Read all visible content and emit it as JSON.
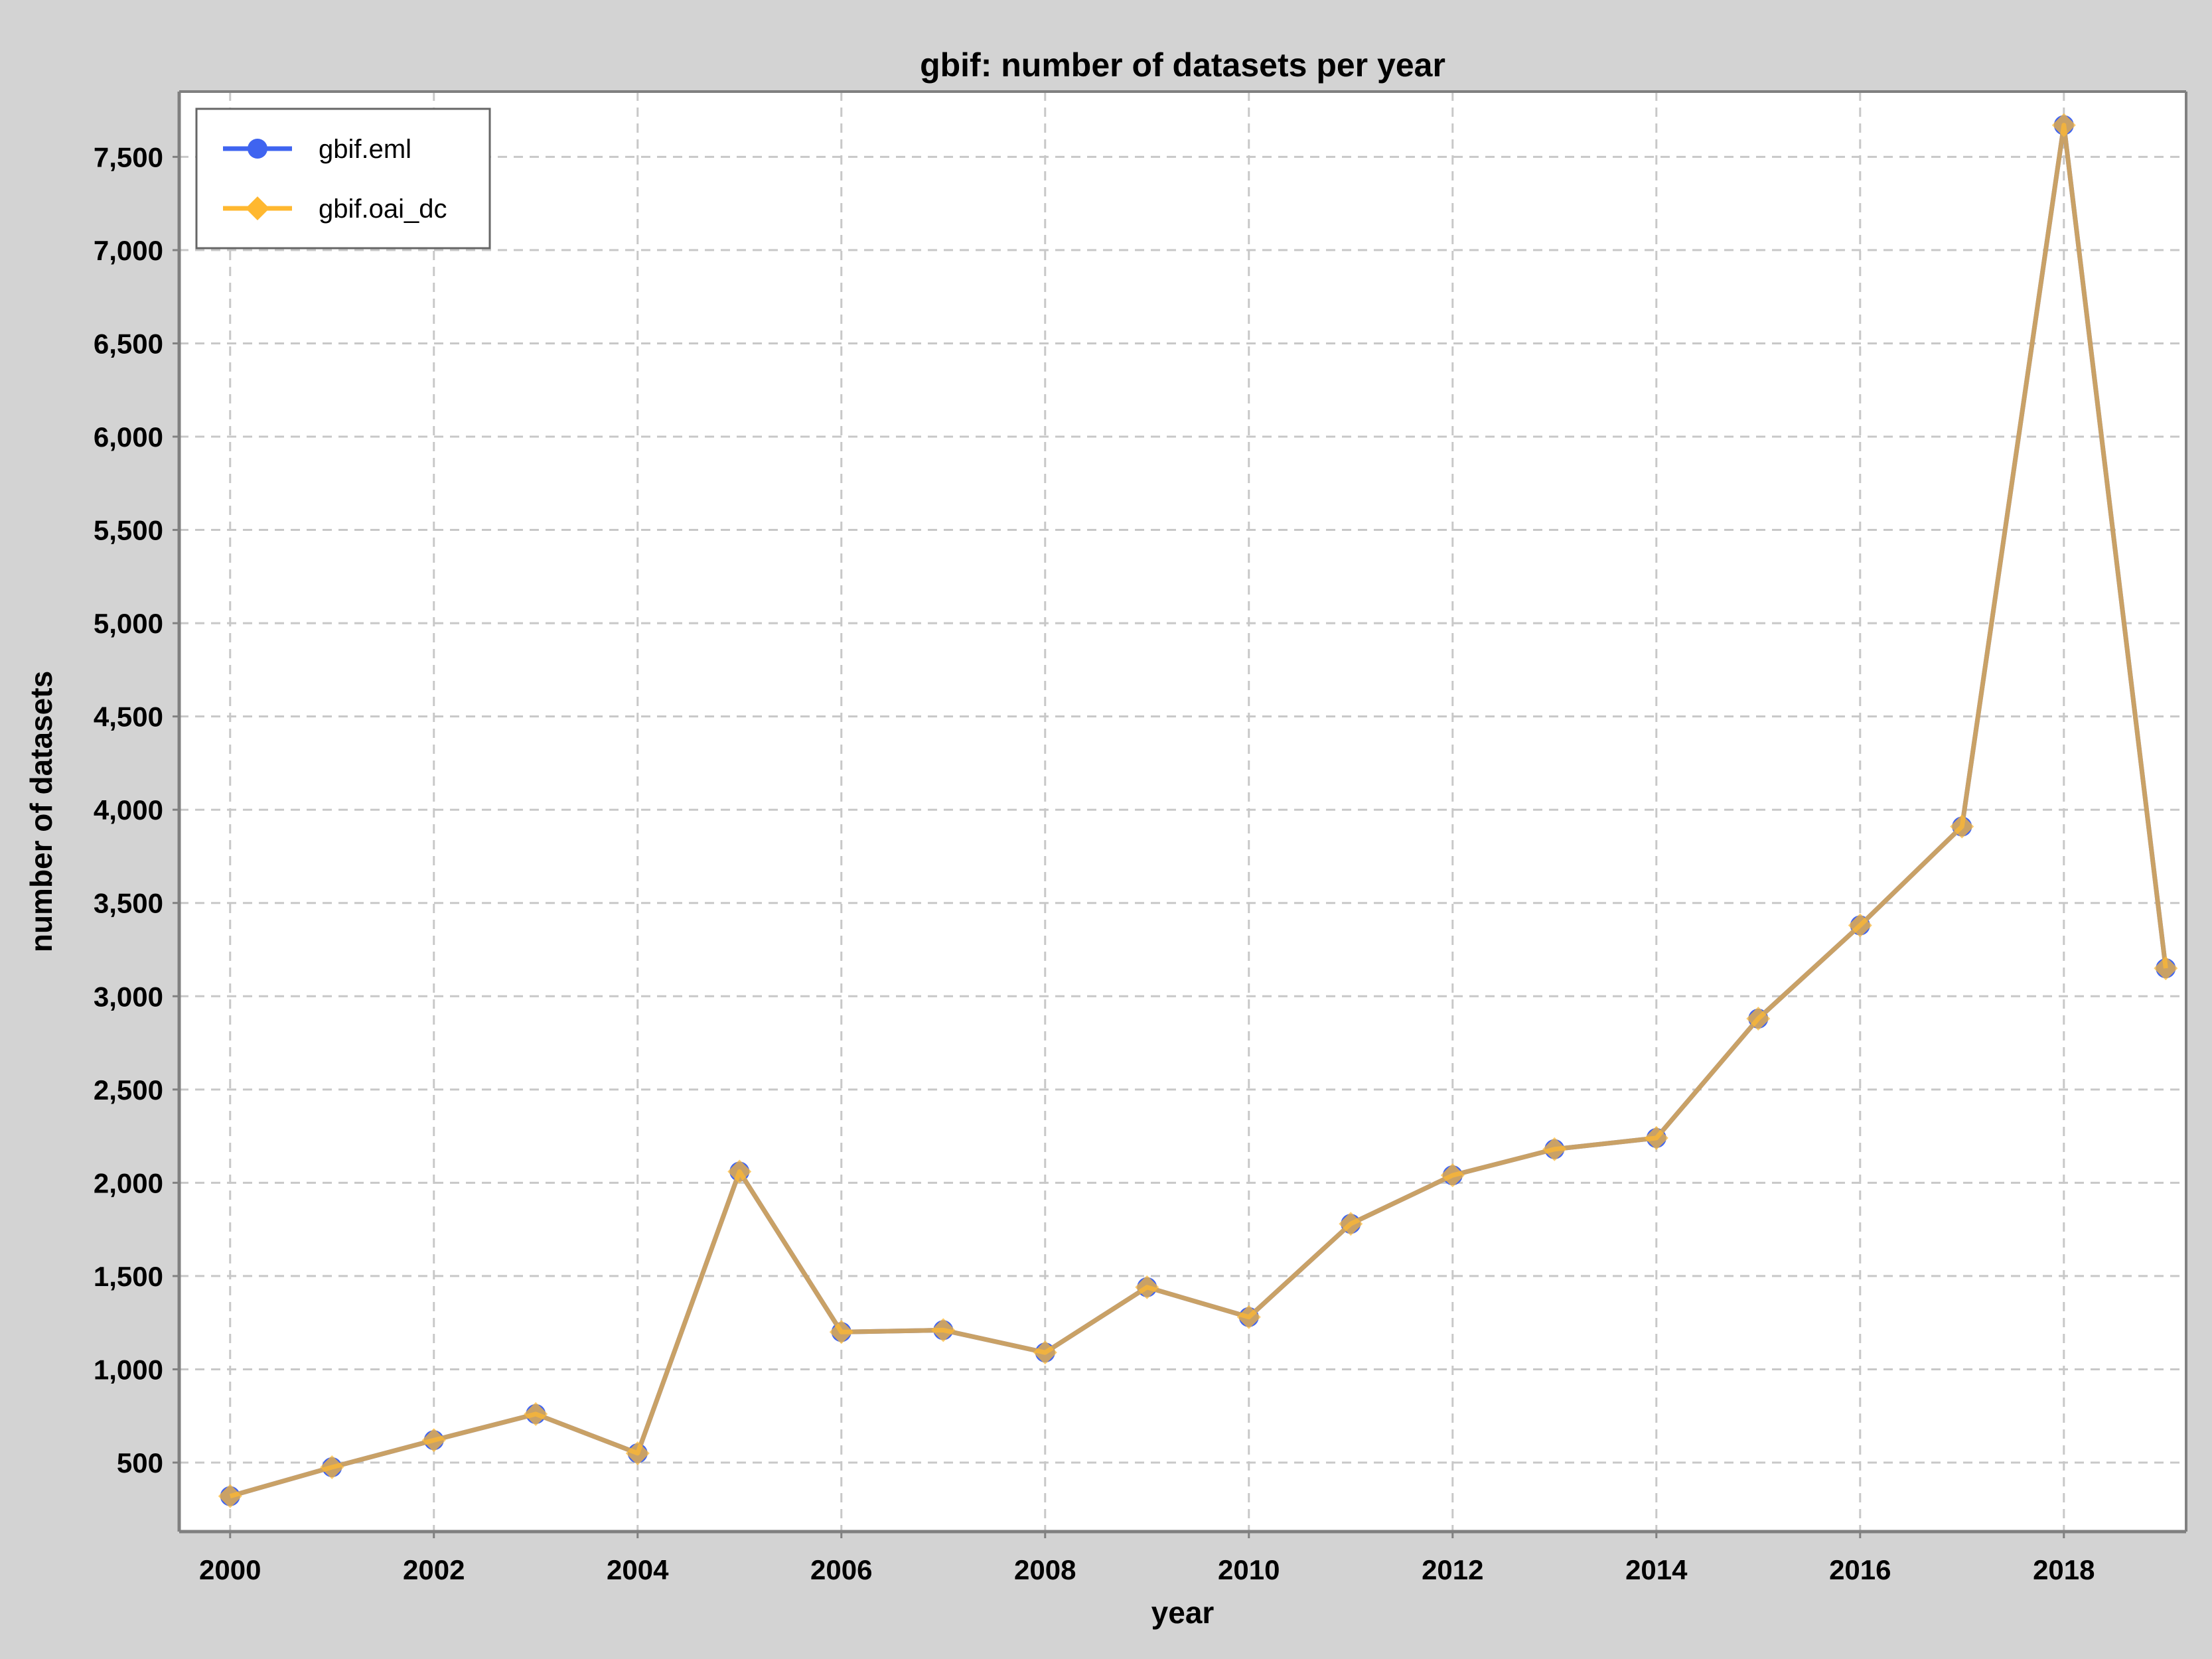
{
  "chart_data": {
    "type": "line",
    "title": "gbif: number of datasets per year",
    "xlabel": "year",
    "ylabel": "number of datasets",
    "x": [
      2000,
      2001,
      2002,
      2003,
      2004,
      2005,
      2006,
      2007,
      2008,
      2009,
      2010,
      2011,
      2012,
      2013,
      2014,
      2015,
      2016,
      2017,
      2018,
      2019
    ],
    "xlim": [
      1999.5,
      2019.2
    ],
    "ylim": [
      130,
      7850
    ],
    "xticks": [
      2000,
      2002,
      2004,
      2006,
      2008,
      2010,
      2012,
      2014,
      2016,
      2018
    ],
    "yticks": [
      500,
      1000,
      1500,
      2000,
      2500,
      3000,
      3500,
      4000,
      4500,
      5000,
      5500,
      6000,
      6500,
      7000,
      7500
    ],
    "grid": true,
    "legend_position": "top-left",
    "series": [
      {
        "name": "gbif.eml",
        "color": "#3f64f0",
        "marker": "circle",
        "values": [
          320,
          475,
          620,
          760,
          550,
          2060,
          1200,
          1210,
          1090,
          1440,
          1280,
          1780,
          2040,
          2180,
          2240,
          2880,
          3380,
          3910,
          7670,
          3150
        ]
      },
      {
        "name": "gbif.oai_dc",
        "color": "#ffb830",
        "marker": "diamond",
        "values": [
          320,
          475,
          620,
          760,
          550,
          2060,
          1200,
          1210,
          1090,
          1440,
          1280,
          1780,
          2040,
          2180,
          2240,
          2880,
          3380,
          3910,
          7670,
          3150
        ]
      }
    ]
  }
}
